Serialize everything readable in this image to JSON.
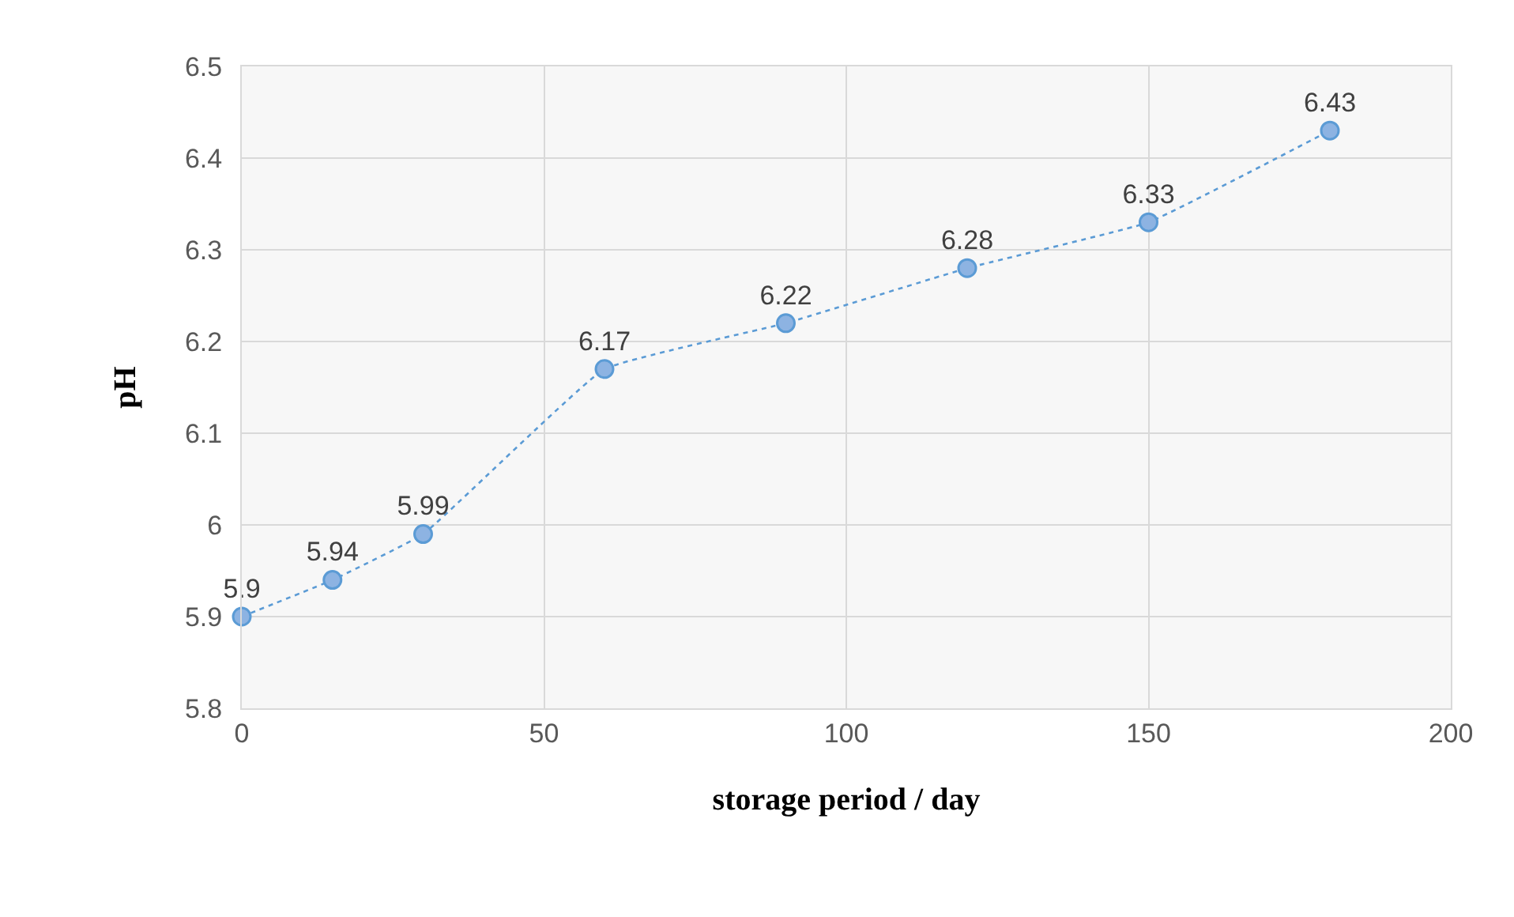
{
  "chart_data": {
    "type": "line",
    "xlabel": "storage period / day",
    "ylabel": "pH",
    "x": [
      0,
      15,
      30,
      60,
      90,
      120,
      150,
      180
    ],
    "series": [
      {
        "color": "#5b9bd5",
        "values": [
          5.9,
          5.94,
          5.99,
          6.17,
          6.22,
          6.28,
          6.33,
          6.43
        ]
      }
    ],
    "xlim": [
      0,
      200
    ],
    "xticks": [
      0,
      50,
      100,
      150,
      200
    ],
    "ylim": [
      5.8,
      6.5
    ],
    "yticks": [
      5.8,
      5.9,
      6,
      6.1,
      6.2,
      6.3,
      6.4,
      6.5
    ],
    "grid": true,
    "marker": "circle",
    "line_style": "dotted",
    "data_labels": true
  }
}
